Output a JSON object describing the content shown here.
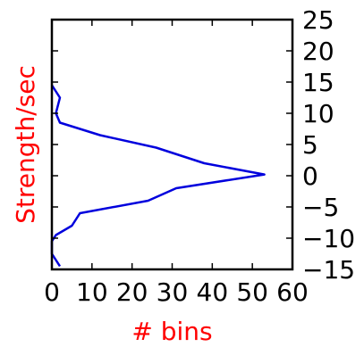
{
  "chart_data": {
    "type": "line",
    "title": "",
    "xlabel": "# bins",
    "ylabel": "Strength/sec",
    "xlim": [
      0,
      60
    ],
    "ylim": [
      -15,
      25
    ],
    "x_ticks": [
      0,
      10,
      20,
      30,
      40,
      50,
      60
    ],
    "y_ticks": [
      -15,
      -10,
      -5,
      0,
      5,
      10,
      15,
      20,
      25
    ],
    "x_tick_labels": [
      "0",
      "10",
      "20",
      "30",
      "40",
      "50",
      "60"
    ],
    "y_tick_labels": [
      "−15",
      "−10",
      "−5",
      "0",
      "5",
      "10",
      "15",
      "20",
      "25"
    ],
    "y_axis_side": "right",
    "grid": false,
    "legend": "none",
    "colors": {
      "line": "#0000dd",
      "axis_label": "#ff0000",
      "tick_label": "#000000",
      "frame": "#000000"
    },
    "series": [
      {
        "x": [
          2,
          0,
          0,
          1,
          5,
          7,
          24,
          31,
          53,
          38,
          26,
          12,
          2,
          1,
          2,
          0
        ],
        "y": [
          -14.5,
          -12.5,
          -10.5,
          -9.5,
          -8,
          -6,
          -4,
          -2,
          0.2,
          2,
          4.5,
          6.5,
          8.5,
          10,
          12.5,
          14.5
        ]
      }
    ]
  }
}
